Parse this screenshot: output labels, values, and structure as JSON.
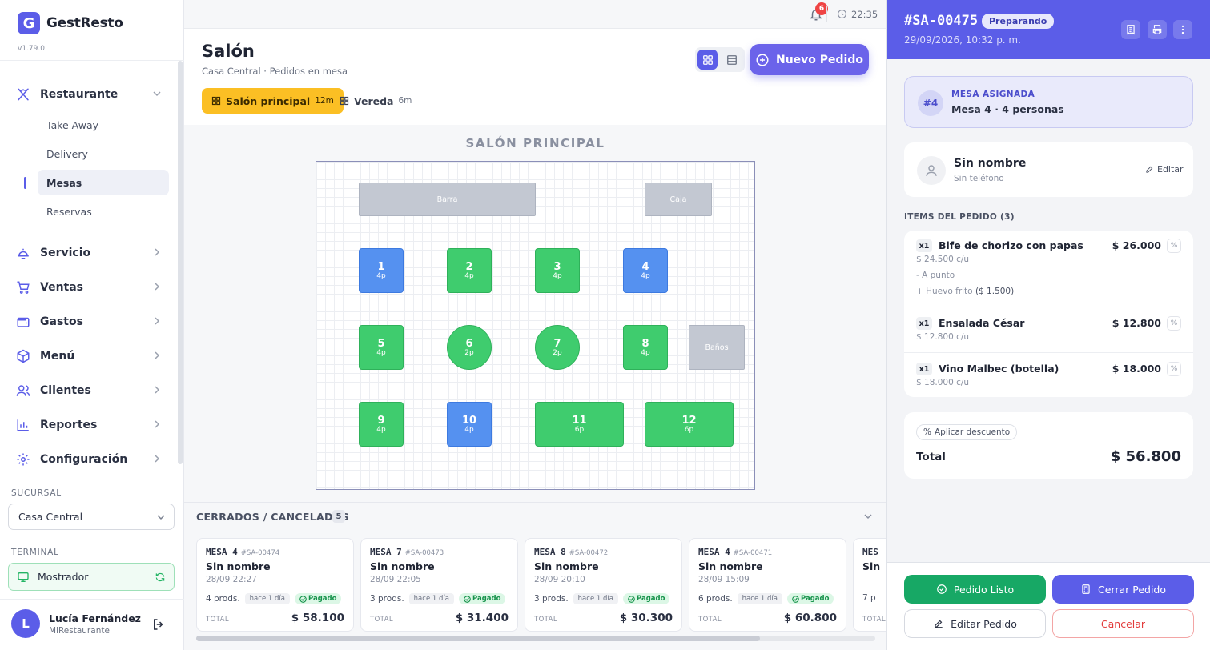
{
  "app": {
    "name": "GestResto",
    "logo_letter": "G",
    "version": "v1.79.0"
  },
  "sidebar": {
    "restaurante": {
      "label": "Restaurante",
      "icon": "utensils-icon"
    },
    "sub_items": [
      {
        "label": "Take Away",
        "active": false
      },
      {
        "label": "Delivery",
        "active": false
      },
      {
        "label": "Mesas",
        "active": true
      },
      {
        "label": "Reservas",
        "active": false
      }
    ],
    "items": [
      {
        "label": "Servicio",
        "icon": "bell-service-icon"
      },
      {
        "label": "Ventas",
        "icon": "cart-icon"
      },
      {
        "label": "Gastos",
        "icon": "wallet-icon"
      },
      {
        "label": "Menú",
        "icon": "box-icon"
      },
      {
        "label": "Clientes",
        "icon": "users-icon"
      },
      {
        "label": "Reportes",
        "icon": "chart-icon"
      },
      {
        "label": "Configuración",
        "icon": "gear-icon"
      }
    ],
    "sucursal_label": "SUCURSAL",
    "sucursal_value": "Casa Central",
    "terminal_label": "TERMINAL",
    "terminal_value": "Mostrador",
    "user": {
      "initial": "L",
      "name": "Lucía Fernández",
      "org": "MiRestaurante"
    }
  },
  "topbar": {
    "notifications": "6",
    "time": "22:35"
  },
  "header": {
    "title": "Salón",
    "subtitle": "Casa Central · Pedidos en mesa",
    "new_order": "Nuevo Pedido",
    "zones": [
      {
        "label": "Salón principal",
        "time": "12m",
        "active": true
      },
      {
        "label": "Vereda",
        "time": "6m",
        "active": false
      }
    ]
  },
  "floor": {
    "title": "SALÓN PRINCIPAL",
    "fixtures": {
      "barra": "Barra",
      "caja": "Caja",
      "banos": "Baños"
    },
    "tables": [
      {
        "n": "1",
        "cap": "4p",
        "status": "occupied",
        "shape": "square"
      },
      {
        "n": "2",
        "cap": "4p",
        "status": "free",
        "shape": "square"
      },
      {
        "n": "3",
        "cap": "4p",
        "status": "free",
        "shape": "square"
      },
      {
        "n": "4",
        "cap": "4p",
        "status": "occupied",
        "shape": "square"
      },
      {
        "n": "5",
        "cap": "4p",
        "status": "free",
        "shape": "square"
      },
      {
        "n": "6",
        "cap": "2p",
        "status": "free",
        "shape": "round"
      },
      {
        "n": "7",
        "cap": "2p",
        "status": "free",
        "shape": "round"
      },
      {
        "n": "8",
        "cap": "4p",
        "status": "free",
        "shape": "square"
      },
      {
        "n": "9",
        "cap": "4p",
        "status": "free",
        "shape": "square"
      },
      {
        "n": "10",
        "cap": "4p",
        "status": "occupied",
        "shape": "square"
      },
      {
        "n": "11",
        "cap": "6p",
        "status": "free",
        "shape": "wide"
      },
      {
        "n": "12",
        "cap": "6p",
        "status": "free",
        "shape": "wide"
      }
    ]
  },
  "closed": {
    "title": "CERRADOS / CANCELADOS",
    "count": "5",
    "total_label": "TOTAL",
    "cards": [
      {
        "mesa": "MESA 4",
        "id": "#SA-00474",
        "name": "Sin nombre",
        "date": "28/09 22:27",
        "prods": "4 prods.",
        "ago": "hace 1 día",
        "status": "Pagado",
        "total": "$ 58.100"
      },
      {
        "mesa": "MESA 7",
        "id": "#SA-00473",
        "name": "Sin nombre",
        "date": "28/09 22:05",
        "prods": "3 prods.",
        "ago": "hace 1 día",
        "status": "Pagado",
        "total": "$ 31.400"
      },
      {
        "mesa": "MESA 8",
        "id": "#SA-00472",
        "name": "Sin nombre",
        "date": "28/09 20:10",
        "prods": "3 prods.",
        "ago": "hace 1 día",
        "status": "Pagado",
        "total": "$ 30.300"
      },
      {
        "mesa": "MESA 4",
        "id": "#SA-00471",
        "name": "Sin nombre",
        "date": "28/09 15:09",
        "prods": "6 prods.",
        "ago": "hace 1 día",
        "status": "Pagado",
        "total": "$ 60.800"
      },
      {
        "mesa": "MES",
        "id": "",
        "name": "Sin",
        "date": "",
        "prods": "7 p",
        "ago": "",
        "status": "",
        "total": ""
      }
    ]
  },
  "order": {
    "id": "#SA-00475",
    "status": "Preparando",
    "date": "29/09/2026, 10:32 p. m.",
    "mesa_badge": "#4",
    "mesa_label": "MESA ASIGNADA",
    "mesa_value": "Mesa 4 · 4 personas",
    "customer_name": "Sin nombre",
    "customer_phone": "Sin teléfono",
    "edit_label": "Editar",
    "items_title": "ITEMS DEL PEDIDO (3)",
    "items": [
      {
        "qty": "x1",
        "name": "Bife de chorizo con papas",
        "price": "$ 26.000",
        "unit": "$ 24.500 c/u",
        "mods": [
          "- A punto",
          "+ Huevo frito"
        ],
        "mod_extra": "($ 1.500)"
      },
      {
        "qty": "x1",
        "name": "Ensalada César",
        "price": "$ 12.800",
        "unit": "$ 12.800 c/u"
      },
      {
        "qty": "x1",
        "name": "Vino Malbec (botella)",
        "price": "$ 18.000",
        "unit": "$ 18.000 c/u"
      }
    ],
    "discount_label": "Aplicar descuento",
    "total_label": "Total",
    "total": "$ 56.800",
    "buttons": {
      "ready": "Pedido Listo",
      "close": "Cerrar Pedido",
      "edit": "Editar Pedido",
      "cancel": "Cancelar"
    }
  },
  "colors": {
    "accent": "#5b5de8",
    "free_table": "#3fcc6e",
    "occupied_table": "#5591f0",
    "zone_active": "#fbbf24",
    "ready": "#17a865",
    "cancel": "#e23b3b"
  }
}
